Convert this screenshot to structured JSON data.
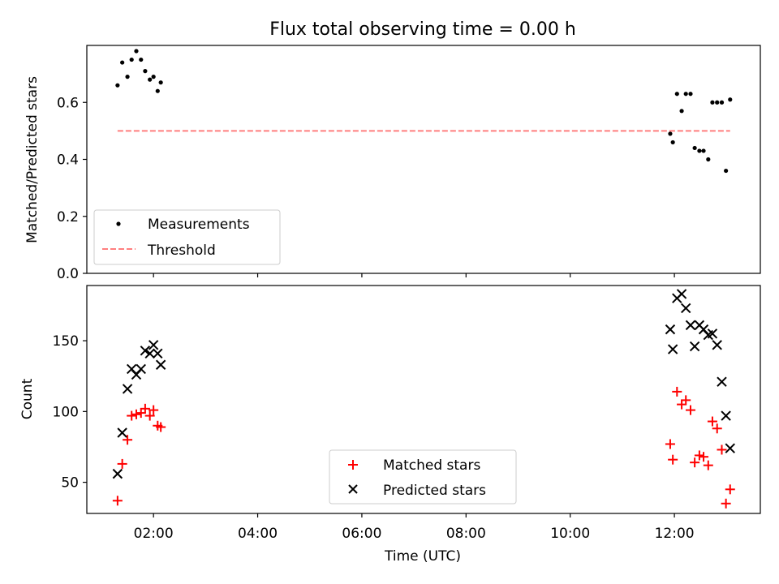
{
  "title": "Flux total observing time = 0.00 h",
  "chart_data": [
    {
      "type": "scatter",
      "ylabel": "Matched/Predicted stars",
      "ylim": [
        0,
        0.8
      ],
      "yticks": [
        "0.0",
        "0.2",
        "0.4",
        "0.6"
      ],
      "xlim_hours": [
        0.72,
        13.65
      ],
      "grid": false,
      "legend_position": "lower-left",
      "series": [
        {
          "name": "Measurements",
          "marker": "dot",
          "color": "#000000",
          "x": [
            1.31,
            1.4,
            1.5,
            1.58,
            1.67,
            1.76,
            1.84,
            1.93,
            2.0,
            2.08,
            2.14,
            11.92,
            11.97,
            12.05,
            12.14,
            12.22,
            12.31,
            12.39,
            12.48,
            12.56,
            12.65,
            12.73,
            12.82,
            12.91,
            12.99,
            13.07
          ],
          "y": [
            0.66,
            0.74,
            0.69,
            0.75,
            0.78,
            0.75,
            0.71,
            0.68,
            0.69,
            0.64,
            0.67,
            0.49,
            0.46,
            0.63,
            0.57,
            0.63,
            0.63,
            0.44,
            0.43,
            0.43,
            0.4,
            0.6,
            0.6,
            0.6,
            0.36,
            0.61
          ]
        },
        {
          "name": "Threshold",
          "style": "dashed",
          "color": "#ff7f7f",
          "x": [
            1.31,
            13.07
          ],
          "y": [
            0.5,
            0.5
          ]
        }
      ]
    },
    {
      "type": "scatter",
      "xlabel": "Time (UTC)",
      "ylabel": "Count",
      "ylim": [
        28,
        189
      ],
      "yticks": [
        "50",
        "100",
        "150"
      ],
      "xticks": [
        "02:00",
        "04:00",
        "06:00",
        "08:00",
        "10:00",
        "12:00"
      ],
      "xlim_hours": [
        0.72,
        13.65
      ],
      "grid": false,
      "legend_position": "lower-center",
      "series": [
        {
          "name": "Matched stars",
          "marker": "plus",
          "color": "#ff0000",
          "x": [
            1.31,
            1.4,
            1.5,
            1.58,
            1.67,
            1.76,
            1.84,
            1.93,
            2.0,
            2.08,
            2.14,
            11.92,
            11.97,
            12.05,
            12.14,
            12.22,
            12.31,
            12.39,
            12.48,
            12.56,
            12.65,
            12.73,
            12.82,
            12.91,
            12.99,
            13.07
          ],
          "y": [
            37,
            63,
            80,
            97,
            98,
            99,
            102,
            97,
            101,
            90,
            89,
            77,
            66,
            114,
            105,
            108,
            101,
            64,
            69,
            68,
            62,
            93,
            88,
            73,
            35,
            45
          ]
        },
        {
          "name": "Predicted stars",
          "marker": "x",
          "color": "#000000",
          "x": [
            1.31,
            1.4,
            1.5,
            1.58,
            1.67,
            1.76,
            1.84,
            1.93,
            2.0,
            2.08,
            2.14,
            11.92,
            11.97,
            12.05,
            12.14,
            12.22,
            12.31,
            12.39,
            12.48,
            12.56,
            12.65,
            12.73,
            12.82,
            12.91,
            12.99,
            13.07
          ],
          "y": [
            56,
            85,
            116,
            130,
            126,
            130,
            143,
            141,
            147,
            141,
            133,
            158,
            144,
            180,
            183,
            173,
            161,
            146,
            161,
            158,
            154,
            155,
            147,
            121,
            97,
            74
          ]
        }
      ]
    }
  ]
}
